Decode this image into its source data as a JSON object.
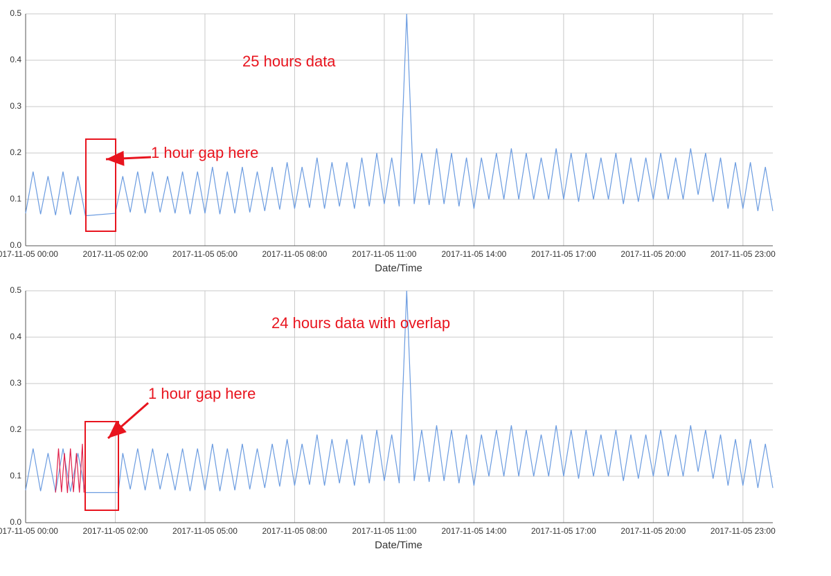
{
  "chart_data": [
    {
      "type": "line",
      "title": "25 hours data",
      "annotations": [
        "1 hour gap here"
      ],
      "x_label": "Date/Time",
      "xlim": [
        0,
        25
      ],
      "ylim": [
        0,
        0.5
      ],
      "grid": true,
      "xticks": [
        {
          "value": 0,
          "label": "2017-11-05 00:00"
        },
        {
          "value": 3,
          "label": "2017-11-05 02:00"
        },
        {
          "value": 6,
          "label": "2017-11-05 05:00"
        },
        {
          "value": 9,
          "label": "2017-11-05 08:00"
        },
        {
          "value": 12,
          "label": "2017-11-05 11:00"
        },
        {
          "value": 15,
          "label": "2017-11-05 14:00"
        },
        {
          "value": 18,
          "label": "2017-11-05 17:00"
        },
        {
          "value": 21,
          "label": "2017-11-05 20:00"
        },
        {
          "value": 24,
          "label": "2017-11-05 23:00"
        }
      ],
      "yticks": [
        {
          "value": 0,
          "label": "0.0"
        },
        0.1,
        0.2,
        0.3,
        0.4,
        0.5
      ],
      "series": [
        {
          "color": "#6a9be0",
          "x": [
            0,
            0.25,
            0.5,
            0.75,
            1,
            1.25,
            1.5,
            1.75,
            2,
            2.08,
            3,
            3.25,
            3.5,
            3.75,
            4,
            4.25,
            4.5,
            4.75,
            5,
            5.25,
            5.5,
            5.75,
            6,
            6.25,
            6.5,
            6.75,
            7,
            7.25,
            7.5,
            7.75,
            8,
            8.25,
            8.5,
            8.75,
            9,
            9.25,
            9.5,
            9.75,
            10,
            10.25,
            10.5,
            10.75,
            11,
            11.25,
            11.5,
            11.75,
            12,
            12.25,
            12.5,
            12.75,
            13,
            13.25,
            13.5,
            13.75,
            14,
            14.25,
            14.5,
            14.75,
            15,
            15.25,
            15.5,
            15.75,
            16,
            16.25,
            16.5,
            16.75,
            17,
            17.25,
            17.5,
            17.75,
            18,
            18.25,
            18.5,
            18.75,
            19,
            19.25,
            19.5,
            19.75,
            20,
            20.25,
            20.5,
            20.75,
            21,
            21.25,
            21.5,
            21.75,
            22,
            22.25,
            22.5,
            22.75,
            23,
            23.25,
            23.5,
            23.75,
            24,
            24.25,
            24.5,
            24.75,
            25
          ],
          "values": [
            0.07,
            0.16,
            0.068,
            0.15,
            0.066,
            0.16,
            0.067,
            0.15,
            0.065,
            0.065,
            0.07,
            0.15,
            0.072,
            0.16,
            0.07,
            0.16,
            0.072,
            0.15,
            0.07,
            0.16,
            0.068,
            0.16,
            0.07,
            0.17,
            0.068,
            0.16,
            0.07,
            0.17,
            0.072,
            0.16,
            0.075,
            0.17,
            0.078,
            0.18,
            0.08,
            0.17,
            0.082,
            0.19,
            0.08,
            0.18,
            0.085,
            0.18,
            0.08,
            0.19,
            0.085,
            0.2,
            0.09,
            0.19,
            0.085,
            0.5,
            0.09,
            0.2,
            0.088,
            0.21,
            0.09,
            0.2,
            0.085,
            0.19,
            0.08,
            0.19,
            0.1,
            0.2,
            0.1,
            0.21,
            0.1,
            0.2,
            0.1,
            0.19,
            0.1,
            0.21,
            0.1,
            0.2,
            0.095,
            0.2,
            0.1,
            0.19,
            0.1,
            0.2,
            0.09,
            0.19,
            0.095,
            0.19,
            0.1,
            0.2,
            0.1,
            0.19,
            0.1,
            0.21,
            0.11,
            0.2,
            0.095,
            0.19,
            0.08,
            0.18,
            0.08,
            0.18,
            0.075,
            0.17,
            0.075
          ]
        }
      ]
    },
    {
      "type": "line",
      "title": "24 hours data with overlap",
      "annotations": [
        "1 hour gap here"
      ],
      "x_label": "Date/Time",
      "xlim": [
        0,
        25
      ],
      "ylim": [
        0,
        0.5
      ],
      "grid": true,
      "xticks": [
        {
          "value": 0,
          "label": "2017-11-05 00:00"
        },
        {
          "value": 3,
          "label": "2017-11-05 02:00"
        },
        {
          "value": 6,
          "label": "2017-11-05 05:00"
        },
        {
          "value": 9,
          "label": "2017-11-05 08:00"
        },
        {
          "value": 12,
          "label": "2017-11-05 11:00"
        },
        {
          "value": 15,
          "label": "2017-11-05 14:00"
        },
        {
          "value": 18,
          "label": "2017-11-05 17:00"
        },
        {
          "value": 21,
          "label": "2017-11-05 20:00"
        },
        {
          "value": 24,
          "label": "2017-11-05 23:00"
        }
      ],
      "yticks": [
        {
          "value": 0,
          "label": "0.0"
        },
        0.1,
        0.2,
        0.3,
        0.4,
        0.5
      ],
      "series": [
        {
          "color": "#6a9be0",
          "x": [
            0,
            0.25,
            0.5,
            0.75,
            1,
            1.25,
            1.5,
            1.75,
            2,
            3.1,
            3.25,
            3.5,
            3.75,
            4,
            4.25,
            4.5,
            4.75,
            5,
            5.25,
            5.5,
            5.75,
            6,
            6.25,
            6.5,
            6.75,
            7,
            7.25,
            7.5,
            7.75,
            8,
            8.25,
            8.5,
            8.75,
            9,
            9.25,
            9.5,
            9.75,
            10,
            10.25,
            10.5,
            10.75,
            11,
            11.25,
            11.5,
            11.75,
            12,
            12.25,
            12.5,
            12.75,
            13,
            13.25,
            13.5,
            13.75,
            14,
            14.25,
            14.5,
            14.75,
            15,
            15.25,
            15.5,
            15.75,
            16,
            16.25,
            16.5,
            16.75,
            17,
            17.25,
            17.5,
            17.75,
            18,
            18.25,
            18.5,
            18.75,
            19,
            19.25,
            19.5,
            19.75,
            20,
            20.25,
            20.5,
            20.75,
            21,
            21.25,
            21.5,
            21.75,
            22,
            22.25,
            22.5,
            22.75,
            23,
            23.25,
            23.5,
            23.75,
            24,
            24.25,
            24.5,
            24.75,
            25
          ],
          "values": [
            0.07,
            0.16,
            0.068,
            0.15,
            0.066,
            0.16,
            0.067,
            0.15,
            0.065,
            0.065,
            0.15,
            0.072,
            0.16,
            0.07,
            0.16,
            0.072,
            0.15,
            0.07,
            0.16,
            0.068,
            0.16,
            0.07,
            0.17,
            0.068,
            0.16,
            0.07,
            0.17,
            0.072,
            0.16,
            0.075,
            0.17,
            0.078,
            0.18,
            0.08,
            0.17,
            0.082,
            0.19,
            0.08,
            0.18,
            0.085,
            0.18,
            0.08,
            0.19,
            0.085,
            0.2,
            0.09,
            0.19,
            0.085,
            0.5,
            0.09,
            0.2,
            0.088,
            0.21,
            0.09,
            0.2,
            0.085,
            0.19,
            0.08,
            0.19,
            0.1,
            0.2,
            0.1,
            0.21,
            0.1,
            0.2,
            0.1,
            0.19,
            0.1,
            0.21,
            0.1,
            0.2,
            0.095,
            0.2,
            0.1,
            0.19,
            0.1,
            0.2,
            0.09,
            0.19,
            0.095,
            0.19,
            0.1,
            0.2,
            0.1,
            0.19,
            0.1,
            0.21,
            0.11,
            0.2,
            0.095,
            0.19,
            0.08,
            0.18,
            0.08,
            0.18,
            0.075,
            0.17,
            0.075
          ]
        },
        {
          "color": "#e0204a",
          "x": [
            1,
            1.1,
            1.2,
            1.3,
            1.4,
            1.5,
            1.6,
            1.7,
            1.8,
            1.9,
            1.95
          ],
          "values": [
            0.065,
            0.16,
            0.066,
            0.15,
            0.064,
            0.16,
            0.066,
            0.15,
            0.065,
            0.17,
            0.065
          ]
        }
      ]
    }
  ]
}
